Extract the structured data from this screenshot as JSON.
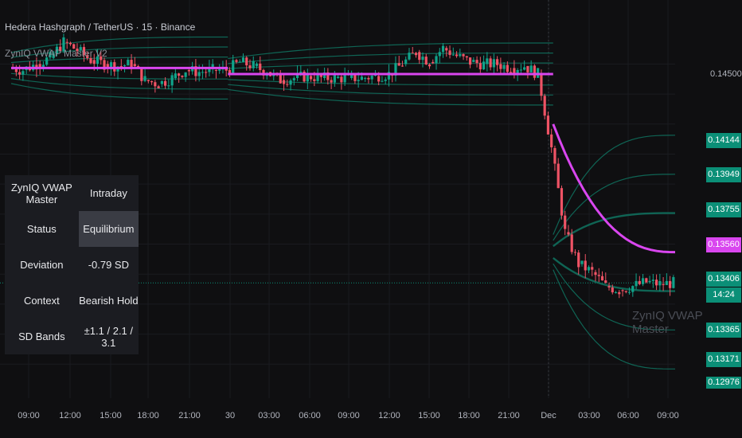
{
  "header": {
    "title": "Hedera Hashgraph / TetherUS · 15 · Binance",
    "indicator": "ZynIQ VWAP Master V2"
  },
  "watermark": "ZynIQ VWAP Master",
  "table": {
    "rows": [
      {
        "label": "ZynIQ VWAP Master",
        "value": "Intraday"
      },
      {
        "label": "Status",
        "value": "Equilibrium"
      },
      {
        "label": "Deviation",
        "value": "-0.79 SD"
      },
      {
        "label": "Context",
        "value": "Bearish Hold"
      },
      {
        "label": "SD Bands",
        "value": "±1.1 / 2.1 / 3.1"
      }
    ]
  },
  "price_axis": {
    "plain_label": "0.14500",
    "tags": [
      {
        "text": "0.14144",
        "color": "#0b8f77"
      },
      {
        "text": "0.13949",
        "color": "#0b8f77"
      },
      {
        "text": "0.13755",
        "color": "#0b8f77"
      },
      {
        "text": "0.13560",
        "color": "#d946ef"
      },
      {
        "text": "0.13406",
        "color": "#0b8f77"
      },
      {
        "text": "14:24",
        "color": "#0b8f77"
      },
      {
        "text": "0.13365",
        "color": "#0b8f77"
      },
      {
        "text": "0.13171",
        "color": "#0b8f77"
      },
      {
        "text": "0.12976",
        "color": "#0b8f77"
      }
    ]
  },
  "time_axis": [
    "09:00",
    "12:00",
    "15:00",
    "18:00",
    "21:00",
    "30",
    "03:00",
    "06:00",
    "09:00",
    "12:00",
    "15:00",
    "18:00",
    "21:00",
    "Dec",
    "03:00",
    "06:00",
    "09:00"
  ],
  "colors": {
    "background": "#0f0f11",
    "candle_up": "#10a38a",
    "candle_down": "#ef5365",
    "vwap_bearish": "#d946ef",
    "vwap_bullish": "#10a38a",
    "band": "#0f6e5c"
  },
  "chart_data": {
    "type": "candlestick",
    "symbol": "Hedera Hashgraph / TetherUS",
    "interval": "15",
    "exchange": "Binance",
    "ylim": [
      0.1283,
      0.1482
    ],
    "last_price": 0.13406,
    "close_path": [
      {
        "t": "08:00",
        "price": 0.1448
      },
      {
        "t": "09:00",
        "price": 0.1447
      },
      {
        "t": "10:00",
        "price": 0.145
      },
      {
        "t": "11:00",
        "price": 0.1453
      },
      {
        "t": "12:00",
        "price": 0.1461
      },
      {
        "t": "13:00",
        "price": 0.1457
      },
      {
        "t": "14:00",
        "price": 0.1452
      },
      {
        "t": "15:00",
        "price": 0.145
      },
      {
        "t": "16:00",
        "price": 0.1449
      },
      {
        "t": "17:00",
        "price": 0.145
      },
      {
        "t": "18:00",
        "price": 0.1442
      },
      {
        "t": "19:00",
        "price": 0.144
      },
      {
        "t": "20:00",
        "price": 0.1443
      },
      {
        "t": "21:00",
        "price": 0.1447
      },
      {
        "t": "22:00",
        "price": 0.1446
      },
      {
        "t": "23:00",
        "price": 0.1447
      },
      {
        "t": "30 00:00",
        "price": 0.1447
      },
      {
        "t": "30 01:00",
        "price": 0.1451
      },
      {
        "t": "30 02:00",
        "price": 0.1449
      },
      {
        "t": "30 03:00",
        "price": 0.1446
      },
      {
        "t": "30 04:00",
        "price": 0.1442
      },
      {
        "t": "30 05:00",
        "price": 0.1443
      },
      {
        "t": "30 06:00",
        "price": 0.1444
      },
      {
        "t": "30 07:00",
        "price": 0.1443
      },
      {
        "t": "30 08:00",
        "price": 0.1443
      },
      {
        "t": "30 09:00",
        "price": 0.1443
      },
      {
        "t": "30 10:00",
        "price": 0.1443
      },
      {
        "t": "30 11:00",
        "price": 0.1444
      },
      {
        "t": "30 12:00",
        "price": 0.1445
      },
      {
        "t": "30 13:00",
        "price": 0.145
      },
      {
        "t": "30 14:00",
        "price": 0.1456
      },
      {
        "t": "30 15:00",
        "price": 0.1451
      },
      {
        "t": "30 16:00",
        "price": 0.1458
      },
      {
        "t": "30 17:00",
        "price": 0.1454
      },
      {
        "t": "30 18:00",
        "price": 0.1451
      },
      {
        "t": "30 19:00",
        "price": 0.145
      },
      {
        "t": "30 20:00",
        "price": 0.145
      },
      {
        "t": "30 21:00",
        "price": 0.1448
      },
      {
        "t": "30 22:00",
        "price": 0.1449
      },
      {
        "t": "30 23:00",
        "price": 0.1445
      },
      {
        "t": "Dec 00:00",
        "price": 0.1408
      },
      {
        "t": "Dec 01:00",
        "price": 0.1366
      },
      {
        "t": "Dec 02:00",
        "price": 0.135
      },
      {
        "t": "Dec 03:00",
        "price": 0.1346
      },
      {
        "t": "Dec 04:00",
        "price": 0.1339
      },
      {
        "t": "Dec 05:00",
        "price": 0.1337
      },
      {
        "t": "Dec 06:00",
        "price": 0.1339
      },
      {
        "t": "Dec 07:00",
        "price": 0.1341
      },
      {
        "t": "Dec 08:00",
        "price": 0.134
      },
      {
        "t": "Dec 09:00",
        "price": 0.13406
      }
    ],
    "vwap_sessions": [
      {
        "session": "day 1",
        "vwap": 0.1448,
        "bands_sd": [
          1.1,
          2.1,
          3.1
        ],
        "sd_price": 0.0005
      },
      {
        "session": "30",
        "vwap": 0.1445,
        "bands_sd": [
          1.1,
          2.1,
          3.1
        ],
        "sd_price": 0.0005
      },
      {
        "session": "Dec",
        "vwap": 0.1356,
        "bands": [
          0.14144,
          0.13949,
          0.13755,
          0.13365,
          0.13171,
          0.12976
        ]
      }
    ]
  }
}
